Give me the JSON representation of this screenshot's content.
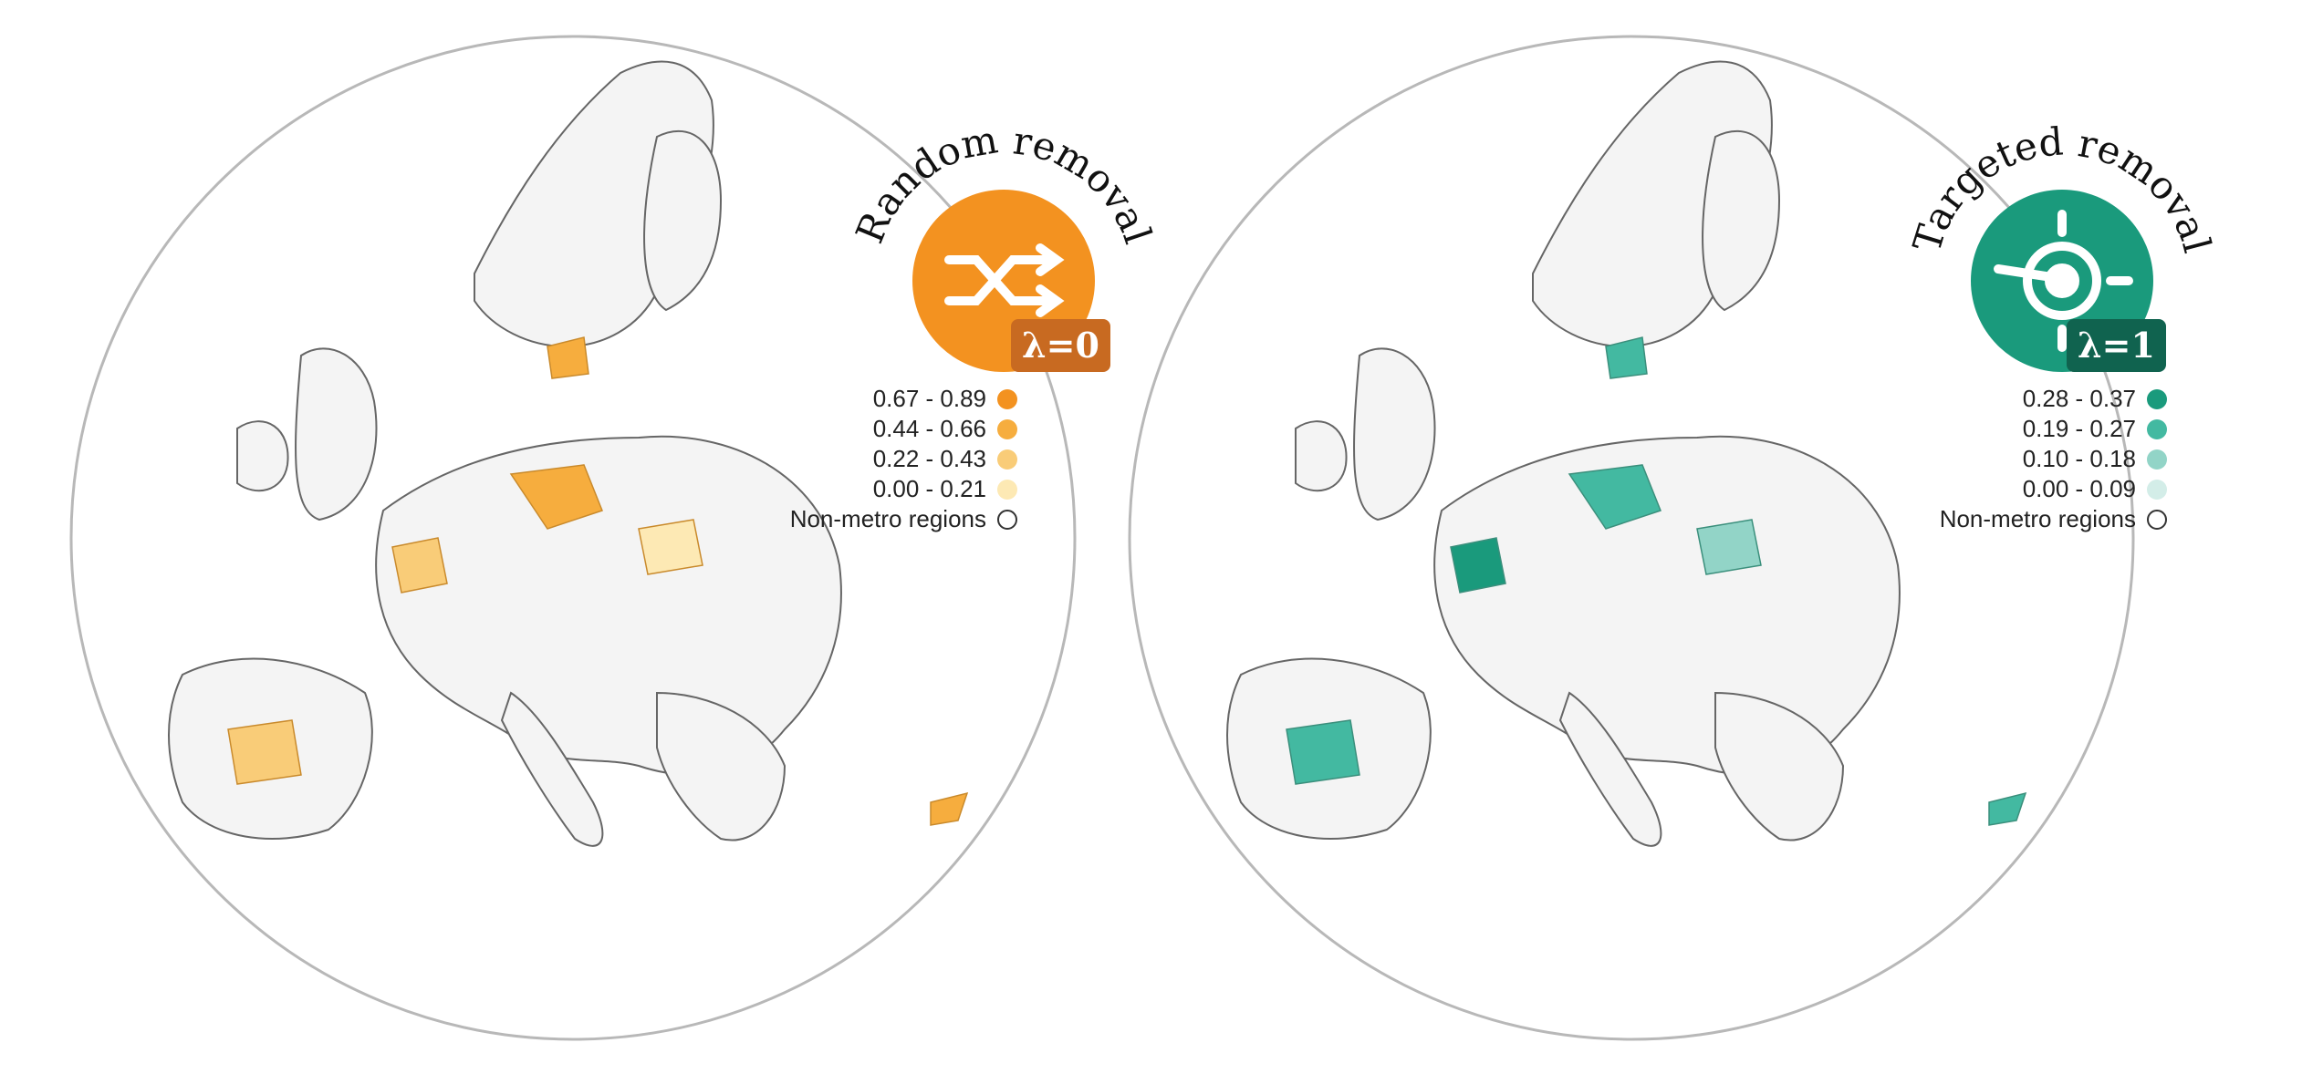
{
  "panels": [
    {
      "title": "Random removal",
      "badge": "λ=0",
      "icon": "shuffle-icon",
      "accent": "#f39220",
      "badge_color": "#c86a21",
      "legend": [
        {
          "label": "0.67 - 0.89",
          "color": "#f39220"
        },
        {
          "label": "0.44 - 0.66",
          "color": "#f6ad3e"
        },
        {
          "label": "0.22 - 0.43",
          "color": "#f9cc78"
        },
        {
          "label": "0.00 - 0.21",
          "color": "#fde9b4"
        },
        {
          "label": "Non-metro regions",
          "color": "#ffffff"
        }
      ]
    },
    {
      "title": "Targeted removal",
      "badge": "λ=1",
      "icon": "target-icon",
      "accent": "#1a9a7c",
      "badge_color": "#10634f",
      "legend": [
        {
          "label": "0.28 - 0.37",
          "color": "#1a9a7c"
        },
        {
          "label": "0.19 - 0.27",
          "color": "#43b9a1"
        },
        {
          "label": "0.10 - 0.18",
          "color": "#92d4c7"
        },
        {
          "label": "0.00 - 0.09",
          "color": "#d3ede8"
        },
        {
          "label": "Non-metro regions",
          "color": "#ffffff"
        }
      ]
    }
  ]
}
